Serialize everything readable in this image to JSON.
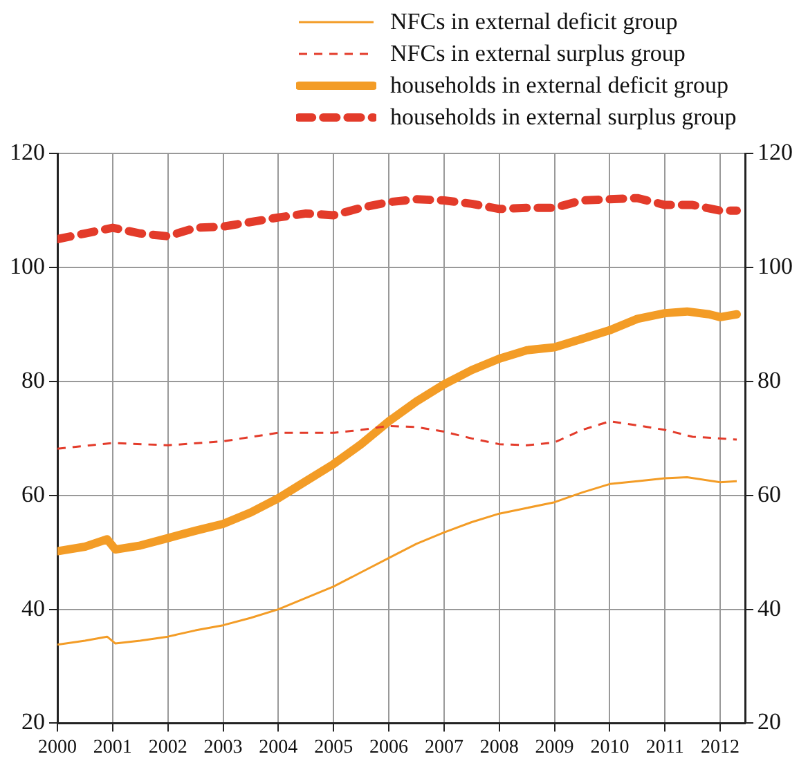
{
  "chart_data": {
    "type": "line",
    "legend": "top",
    "grid": true,
    "marker": "none",
    "xlim": [
      2000,
      2012.45
    ],
    "xticks": [
      2000,
      2001,
      2002,
      2003,
      2004,
      2005,
      2006,
      2007,
      2008,
      2009,
      2010,
      2011,
      2012
    ],
    "ylim": [
      20,
      120
    ],
    "yticks": [
      20,
      40,
      60,
      80,
      100,
      120
    ],
    "y2lim": [
      20,
      120
    ],
    "y2ticks": [
      20,
      40,
      60,
      80,
      100,
      120
    ],
    "series": [
      {
        "name": "NFCs in external deficit group",
        "color": "#f39c26",
        "line_style": "solid",
        "x": [
          2000,
          2000.5,
          2000.9,
          2001.05,
          2001.5,
          2002,
          2002.5,
          2003,
          2003.5,
          2004,
          2004.5,
          2005,
          2005.5,
          2006,
          2006.5,
          2007,
          2007.5,
          2008,
          2008.5,
          2009,
          2009.5,
          2010,
          2010.5,
          2011,
          2011.4,
          2012,
          2012.3
        ],
        "values": [
          33.8,
          34.5,
          35.2,
          34,
          34.5,
          35.2,
          36.3,
          37.2,
          38.5,
          40,
          42,
          44,
          46.5,
          49,
          51.5,
          53.5,
          55.3,
          56.8,
          57.8,
          58.8,
          60.5,
          62,
          62.5,
          63,
          63.2,
          62.3,
          62.5
        ]
      },
      {
        "name": "NFCs in external surplus group",
        "color": "#e33b2a",
        "line_style": "dashed",
        "x": [
          2000,
          2001,
          2002,
          2003,
          2004,
          2005,
          2005.5,
          2006,
          2006.5,
          2007,
          2007.5,
          2008,
          2008.5,
          2009,
          2009.5,
          2010,
          2010.5,
          2011,
          2011.5,
          2012,
          2012.3
        ],
        "values": [
          68.2,
          69.2,
          68.8,
          69.5,
          71,
          71,
          71.5,
          72.2,
          72,
          71.2,
          70,
          69,
          68.8,
          69.3,
          71.5,
          73,
          72.3,
          71.5,
          70.3,
          70,
          69.8
        ]
      },
      {
        "name": "households in external deficit group",
        "color": "#f39c26",
        "line_style": "solid",
        "x": [
          2000,
          2000.5,
          2000.9,
          2001.05,
          2001.5,
          2002,
          2002.5,
          2003,
          2003.5,
          2004,
          2004.5,
          2005,
          2005.5,
          2006,
          2006.5,
          2007,
          2007.5,
          2008,
          2008.5,
          2009,
          2009.5,
          2010,
          2010.5,
          2011,
          2011.4,
          2011.8,
          2012,
          2012.3
        ],
        "values": [
          50.2,
          51,
          52.3,
          50.5,
          51.2,
          52.5,
          53.8,
          55,
          57,
          59.5,
          62.5,
          65.5,
          69,
          73,
          76.5,
          79.5,
          82,
          84,
          85.5,
          86,
          87.5,
          89,
          91,
          92,
          92.3,
          91.8,
          91.3,
          91.8
        ]
      },
      {
        "name": "households in external surplus group",
        "color": "#e33b2a",
        "line_style": "dashed",
        "x": [
          2000,
          2000.5,
          2001,
          2001.5,
          2002,
          2002.5,
          2003,
          2003.5,
          2004,
          2004.5,
          2005,
          2005.5,
          2006,
          2006.5,
          2007,
          2007.5,
          2008,
          2008.5,
          2009,
          2009.5,
          2010,
          2010.5,
          2011,
          2011.5,
          2012,
          2012.3
        ],
        "values": [
          105,
          106,
          107,
          106,
          105.5,
          107,
          107.2,
          108,
          108.8,
          109.5,
          109.2,
          110.5,
          111.5,
          112,
          111.8,
          111.2,
          110.3,
          110.5,
          110.5,
          111.8,
          112,
          112.2,
          111,
          111,
          110,
          110
        ]
      }
    ]
  }
}
